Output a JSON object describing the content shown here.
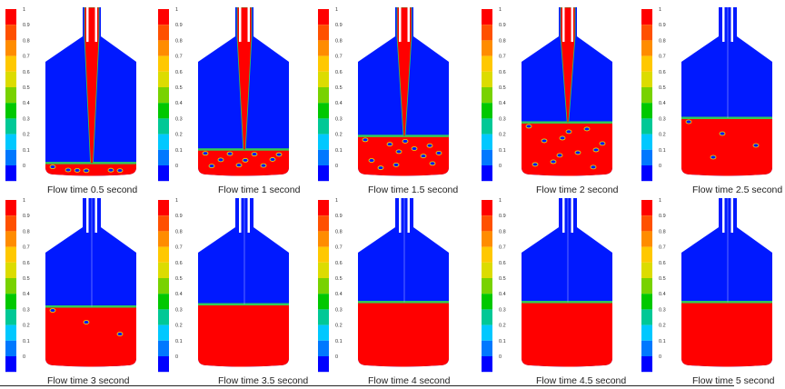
{
  "colors": {
    "fluid_blue": "#0019ff",
    "liquid_red": "#ff0000",
    "interface_green": "#33cc55",
    "interface_yellow": "#e6e600",
    "wall_white": "#ffffff"
  },
  "legend": {
    "ticks": [
      "1",
      "0.9",
      "0.8",
      "0.7",
      "0.6",
      "0.5",
      "0.4",
      "0.3",
      "0.2",
      "0.1",
      "0"
    ],
    "band_colors": [
      "#ff0000",
      "#ff5000",
      "#ff8c00",
      "#ffc800",
      "#dcdc00",
      "#78d200",
      "#00c800",
      "#00c896",
      "#00c8ff",
      "#0078ff",
      "#0000ff"
    ]
  },
  "panels": [
    {
      "caption": "Flow time 0.5 second",
      "fill_fraction": 0.05,
      "jet": true,
      "jet_width": 0.12,
      "bubbles": 6,
      "row": 0,
      "col": 0
    },
    {
      "caption": "Flow time 1 second",
      "fill_fraction": 0.11,
      "jet": true,
      "jet_width": 0.1,
      "bubbles": 10,
      "row": 0,
      "col": 1
    },
    {
      "caption": "Flow time 1.5 second",
      "fill_fraction": 0.17,
      "jet": true,
      "jet_width": 0.08,
      "bubbles": 12,
      "row": 0,
      "col": 2
    },
    {
      "caption": "Flow time 2 second",
      "fill_fraction": 0.23,
      "jet": true,
      "jet_width": 0.05,
      "bubbles": 12,
      "row": 0,
      "col": 3
    },
    {
      "caption": "Flow time 2.5 second",
      "fill_fraction": 0.25,
      "jet": false,
      "jet_width": 0,
      "bubbles": 4,
      "row": 0,
      "col": 4
    },
    {
      "caption": "Flow time 3 second",
      "fill_fraction": 0.26,
      "jet": false,
      "jet_width": 0,
      "bubbles": 3,
      "row": 1,
      "col": 0
    },
    {
      "caption": "Flow time 3.5 second",
      "fill_fraction": 0.27,
      "jet": false,
      "jet_width": 0,
      "bubbles": 0,
      "row": 1,
      "col": 1
    },
    {
      "caption": "Flow time 4 second",
      "fill_fraction": 0.28,
      "jet": false,
      "jet_width": 0,
      "bubbles": 0,
      "row": 1,
      "col": 2
    },
    {
      "caption": "Flow time 4.5 second",
      "fill_fraction": 0.28,
      "jet": false,
      "jet_width": 0,
      "bubbles": 0,
      "row": 1,
      "col": 3
    },
    {
      "caption": "Flow time 5 second",
      "fill_fraction": 0.28,
      "jet": false,
      "jet_width": 0,
      "bubbles": 0,
      "row": 1,
      "col": 4
    }
  ]
}
